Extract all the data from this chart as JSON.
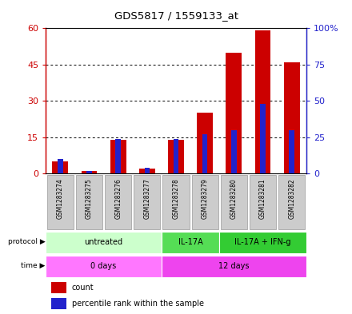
{
  "title": "GDS5817 / 1559133_at",
  "samples": [
    "GSM1283274",
    "GSM1283275",
    "GSM1283276",
    "GSM1283277",
    "GSM1283278",
    "GSM1283279",
    "GSM1283280",
    "GSM1283281",
    "GSM1283282"
  ],
  "counts": [
    5,
    1,
    14,
    2,
    14,
    25,
    50,
    59,
    46
  ],
  "percentiles": [
    10,
    2,
    24,
    4,
    24,
    27,
    30,
    48,
    30
  ],
  "ylim_left": [
    0,
    60
  ],
  "ylim_right": [
    0,
    100
  ],
  "yticks_left": [
    0,
    15,
    30,
    45,
    60
  ],
  "yticks_right": [
    0,
    25,
    50,
    75,
    100
  ],
  "ytick_labels_left": [
    "0",
    "15",
    "30",
    "45",
    "60"
  ],
  "ytick_labels_right": [
    "0",
    "25",
    "50",
    "75",
    "100%"
  ],
  "bar_color_red": "#cc0000",
  "bar_color_blue": "#2222cc",
  "red_bar_width": 0.55,
  "blue_bar_width": 0.18,
  "protocol_groups": [
    {
      "label": "untreated",
      "start": 0,
      "end": 4,
      "color": "#ccffcc"
    },
    {
      "label": "IL-17A",
      "start": 4,
      "end": 6,
      "color": "#55dd55"
    },
    {
      "label": "IL-17A + IFN-g",
      "start": 6,
      "end": 9,
      "color": "#33cc33"
    }
  ],
  "time_groups": [
    {
      "label": "0 days",
      "start": 0,
      "end": 4,
      "color": "#ff77ff"
    },
    {
      "label": "12 days",
      "start": 4,
      "end": 9,
      "color": "#ee44ee"
    }
  ],
  "label_protocol": "protocol",
  "label_time": "time",
  "legend_count": "count",
  "legend_percentile": "percentile rank within the sample",
  "axis_color_left": "#cc0000",
  "axis_color_right": "#2222cc",
  "sample_box_color": "#cccccc",
  "sample_box_edge": "#999999"
}
